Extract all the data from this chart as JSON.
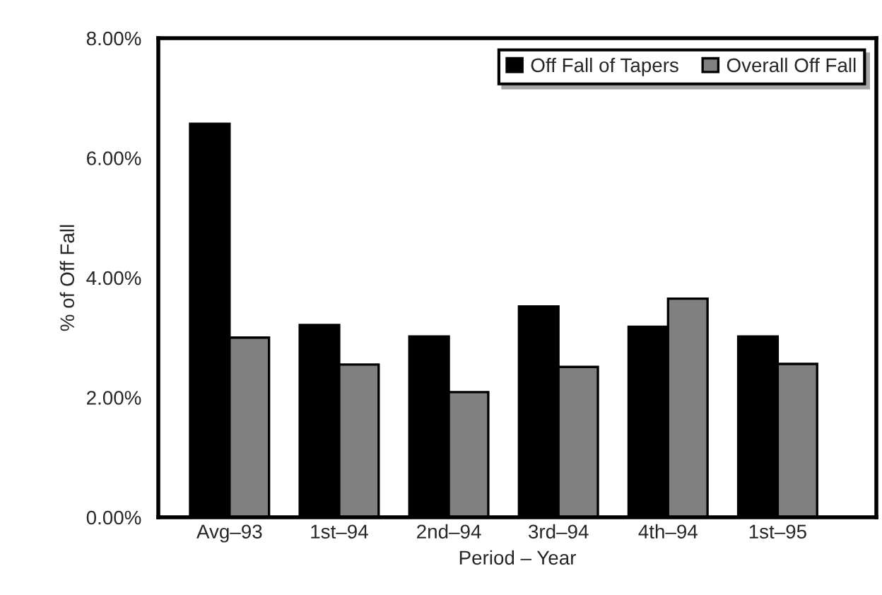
{
  "chart_data": {
    "type": "bar",
    "xlabel": "Period – Year",
    "ylabel": "% of Off Fall",
    "categories": [
      "Avg–93",
      "1st–94",
      "2nd–94",
      "3rd–94",
      "4th–94",
      "1st–95"
    ],
    "series": [
      {
        "name": "Off Fall of Tapers",
        "color": "#000000",
        "values": [
          6.57,
          3.21,
          3.02,
          3.52,
          3.18,
          3.02
        ]
      },
      {
        "name": "Overall Off Fall",
        "color": "#808080",
        "values": [
          3.0,
          2.55,
          2.09,
          2.51,
          3.65,
          2.56
        ]
      }
    ],
    "ylim": [
      0,
      8
    ],
    "yticks": [
      {
        "value": 0,
        "label": "0.00%"
      },
      {
        "value": 2,
        "label": "2.00%"
      },
      {
        "value": 4,
        "label": "4.00%"
      },
      {
        "value": 6,
        "label": "6.00%"
      },
      {
        "value": 8,
        "label": "8.00%"
      }
    ],
    "grid": false,
    "legend": "top right"
  }
}
